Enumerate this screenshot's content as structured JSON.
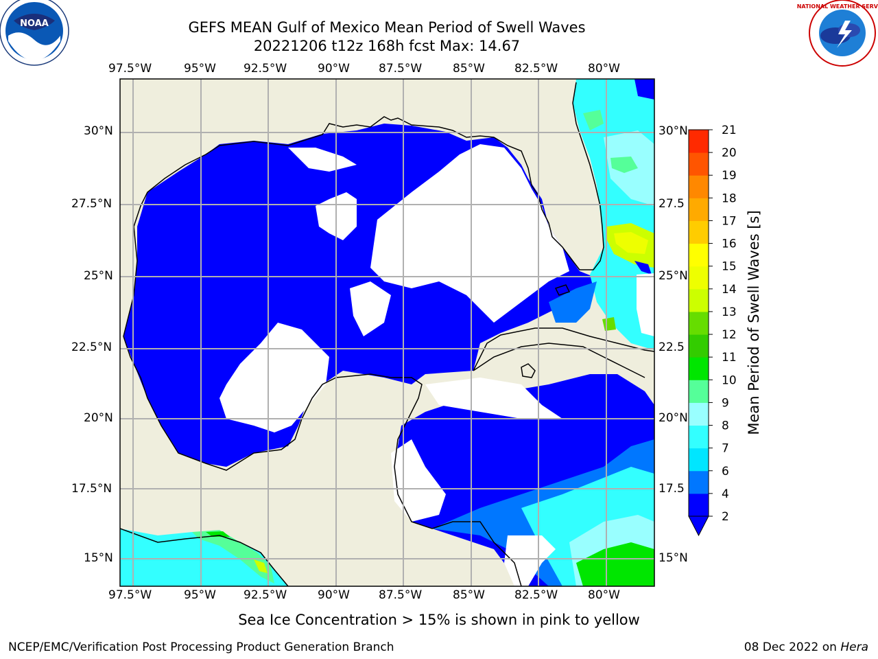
{
  "header": {
    "title_line1": "GEFS MEAN Gulf of Mexico Mean Period of Swell Waves",
    "title_line2": "20221206 t12z 168h fcst   Max: 14.67"
  },
  "logos": {
    "left": {
      "name": "NOAA",
      "ring_text": "NATIONAL OCEANIC AND ATMOSPHERIC ADMINISTRATION · U.S. DEPARTMENT OF COMMERCE"
    },
    "right": {
      "name": "NATIONAL WEATHER SERVICE"
    }
  },
  "axes": {
    "lon_labels": [
      "97.5°W",
      "95°W",
      "92.5°W",
      "90°W",
      "87.5°W",
      "85°W",
      "82.5°W",
      "80°W"
    ],
    "lat_labels": [
      "30°N",
      "27.5°N",
      "25°N",
      "22.5°N",
      "20°N",
      "17.5°N",
      "15°N"
    ],
    "lat_labels_right": [
      "30°N",
      "27.5",
      "25°N",
      "22.5",
      "20°N",
      "17.5",
      "15°N"
    ]
  },
  "colorbar": {
    "label": "Mean Period of Swell Waves [s]",
    "ticks": [
      "2",
      "4",
      "6",
      "7",
      "8",
      "9",
      "10",
      "11",
      "12",
      "13",
      "14",
      "15",
      "16",
      "17",
      "18",
      "19",
      "20",
      "21"
    ],
    "colors": [
      "#0000ff",
      "#0077ff",
      "#00e6ff",
      "#33ffff",
      "#99ffff",
      "#55ff99",
      "#00e600",
      "#33cc00",
      "#66dd00",
      "#ccff00",
      "#eeff00",
      "#ffff00",
      "#ffcc00",
      "#ffaa00",
      "#ff8800",
      "#ff5500",
      "#ff2a00",
      "#ff0000"
    ]
  },
  "footer": {
    "sea_ice_note": "Sea Ice Concentration > 15% is shown in pink to yellow",
    "credit": "NCEP/EMC/Verification Post Processing Product Generation Branch",
    "date": "08 Dec 2022 on",
    "machine": "Hera"
  },
  "colors": {
    "land": "#efeedd",
    "ocean_low": "#0000ff",
    "grid": "#b0b0b0"
  }
}
